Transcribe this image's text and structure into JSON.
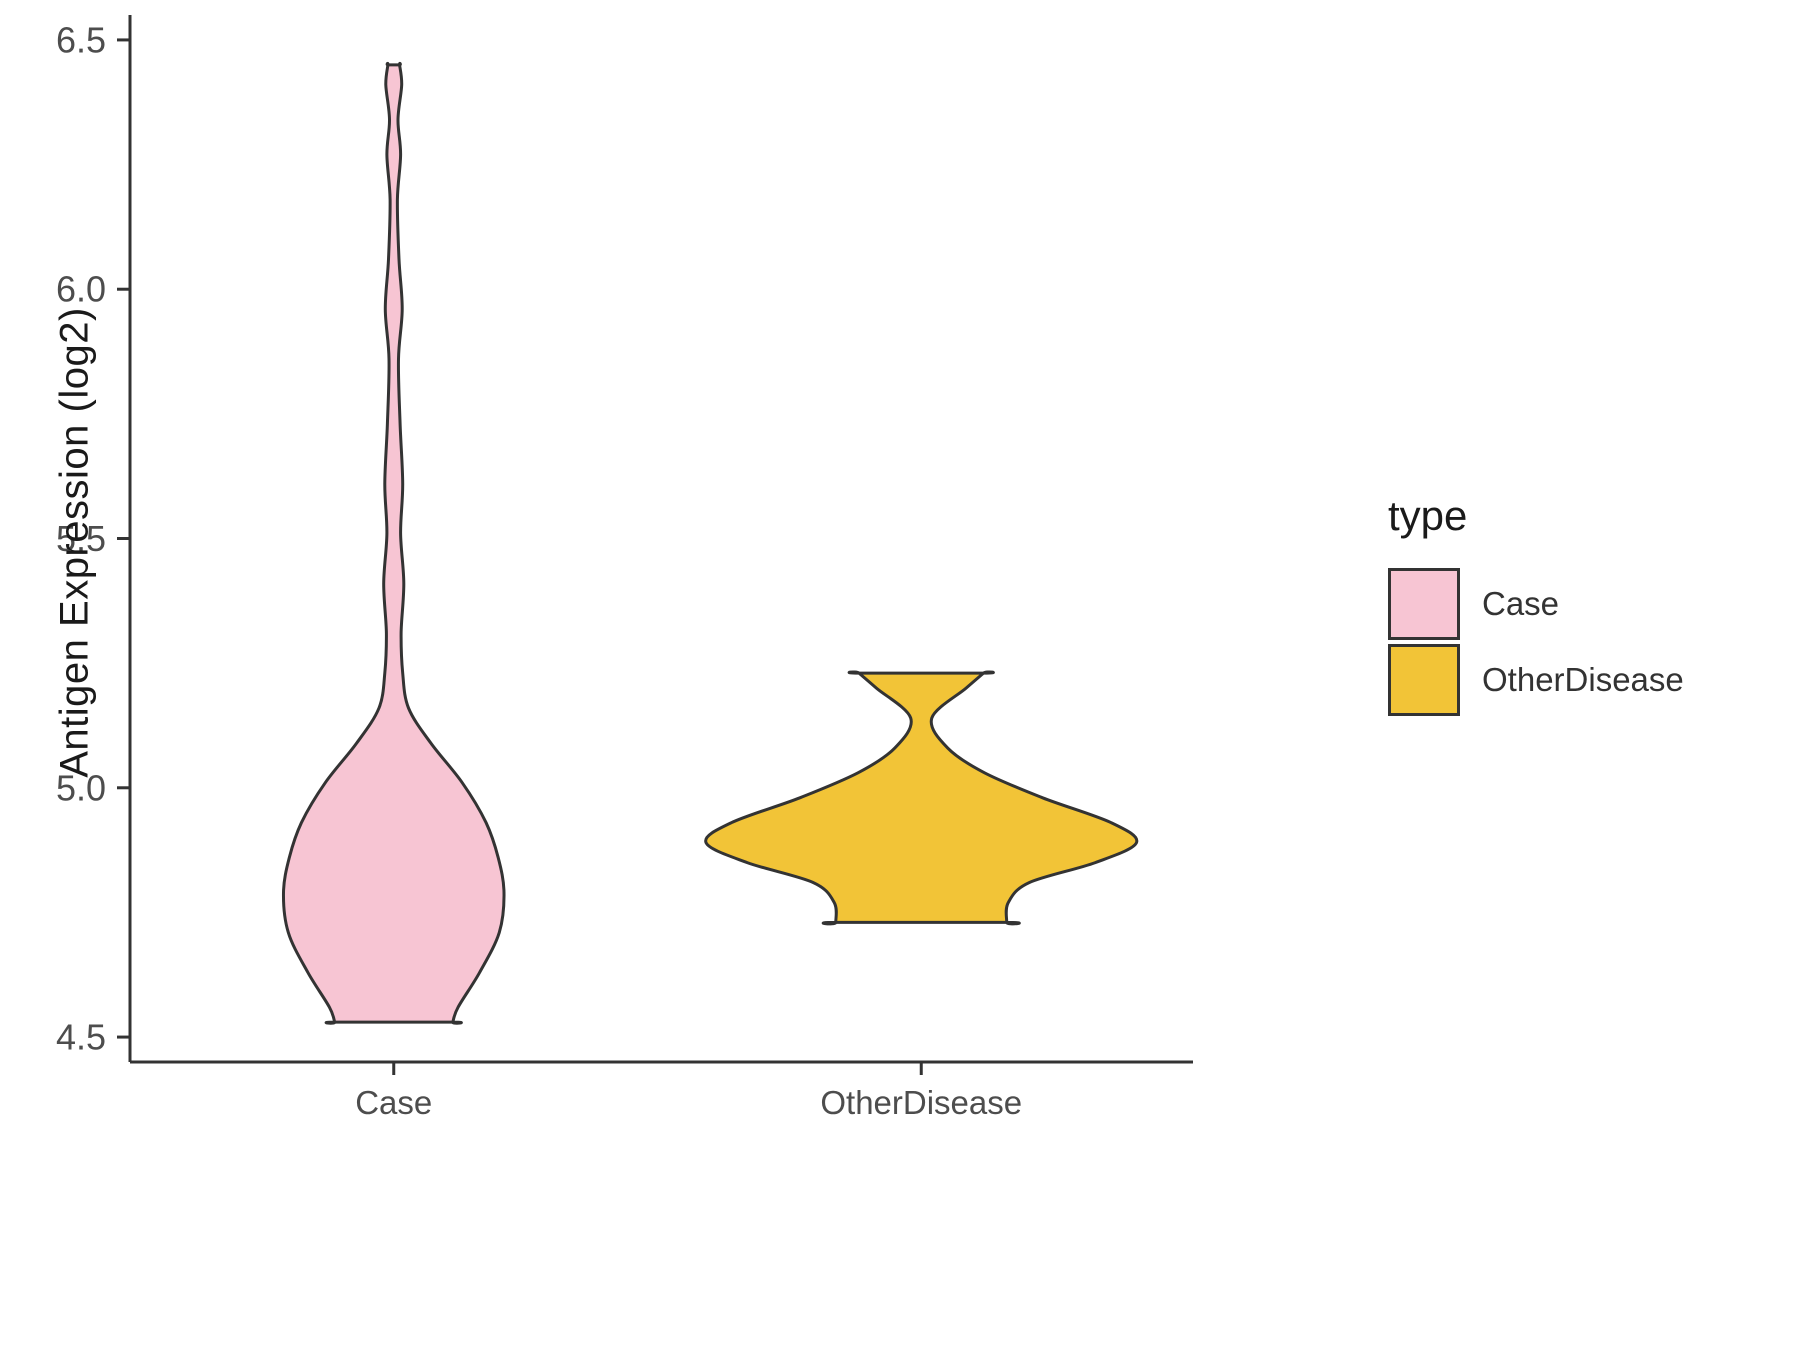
{
  "chart_data": {
    "type": "violin",
    "title": "",
    "xlabel": "",
    "ylabel": "Antigen Expression (log2)",
    "categories": [
      "Case",
      "OtherDisease"
    ],
    "y_ticks": [
      4.5,
      5.0,
      5.5,
      6.0,
      6.5
    ],
    "ylim": [
      4.45,
      6.55
    ],
    "grid": false,
    "legend": {
      "title": "type",
      "position": "right",
      "items": [
        {
          "label": "Case",
          "color": "#F7C5D3"
        },
        {
          "label": "OtherDisease",
          "color": "#F2C437"
        }
      ]
    },
    "style": {
      "axis_color": "#333333",
      "tick_text_color": "#4d4d4d",
      "outline_color": "#333333",
      "outline_width": 3
    },
    "series": [
      {
        "name": "Case",
        "fill": "#F7C5D3",
        "category_index": 0,
        "value_range": [
          4.53,
          6.45
        ],
        "profile": [
          [
            6.45,
            0.011
          ],
          [
            6.41,
            0.015
          ],
          [
            6.34,
            0.008
          ],
          [
            6.27,
            0.013
          ],
          [
            6.18,
            0.007
          ],
          [
            6.06,
            0.01
          ],
          [
            5.96,
            0.016
          ],
          [
            5.86,
            0.009
          ],
          [
            5.73,
            0.012
          ],
          [
            5.61,
            0.017
          ],
          [
            5.51,
            0.013
          ],
          [
            5.41,
            0.019
          ],
          [
            5.31,
            0.014
          ],
          [
            5.23,
            0.017
          ],
          [
            5.16,
            0.028
          ],
          [
            5.09,
            0.07
          ],
          [
            5.01,
            0.13
          ],
          [
            4.93,
            0.175
          ],
          [
            4.86,
            0.198
          ],
          [
            4.79,
            0.209
          ],
          [
            4.71,
            0.2
          ],
          [
            4.63,
            0.163
          ],
          [
            4.56,
            0.122
          ],
          [
            4.53,
            0.112
          ]
        ]
      },
      {
        "name": "OtherDisease",
        "fill": "#F2C437",
        "category_index": 1,
        "value_range": [
          4.73,
          5.23
        ],
        "profile": [
          [
            5.23,
            0.118
          ],
          [
            5.2,
            0.085
          ],
          [
            5.14,
            0.02
          ],
          [
            5.08,
            0.05
          ],
          [
            5.03,
            0.12
          ],
          [
            4.98,
            0.23
          ],
          [
            4.93,
            0.36
          ],
          [
            4.89,
            0.408
          ],
          [
            4.85,
            0.33
          ],
          [
            4.81,
            0.205
          ],
          [
            4.77,
            0.165
          ],
          [
            4.73,
            0.162
          ]
        ]
      }
    ]
  }
}
